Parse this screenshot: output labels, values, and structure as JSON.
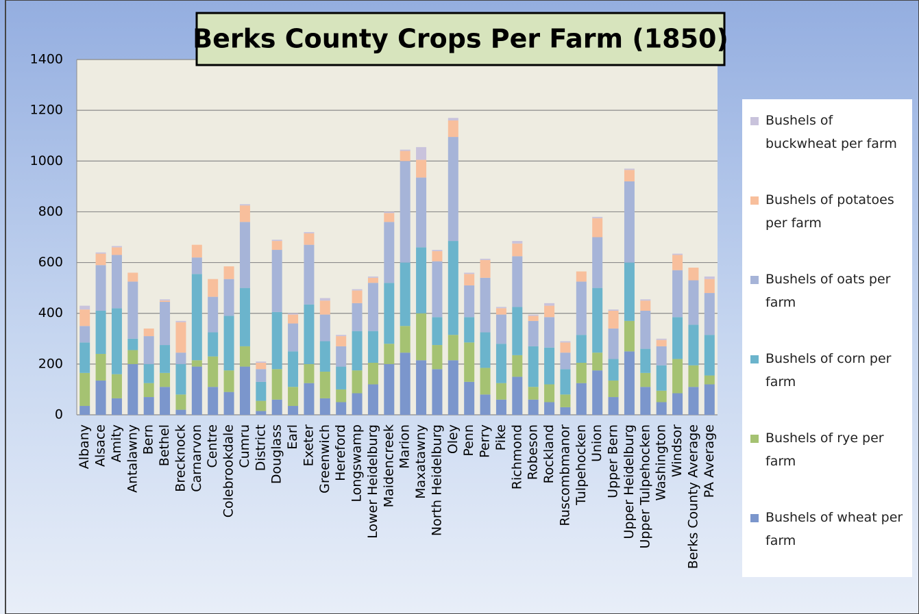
{
  "chart_data": {
    "type": "bar",
    "stacked": true,
    "grid": true,
    "legend": "right",
    "title": "Berks County Crops Per Farm (1850)",
    "categories": [
      "Albany",
      "Alsace",
      "Amity",
      "Antalawny",
      "Bern",
      "Bethel",
      "Brecknock",
      "Carnarvon",
      "Centre",
      "Colebrookdale",
      "Cumru",
      "District",
      "Douglass",
      "Earl",
      "Exeter",
      "Greenwich",
      "Hereford",
      "Longswamp",
      "Lower Heidelburg",
      "Maidencreek",
      "Marion",
      "Maxatawny",
      "North Heidelburg",
      "Oley",
      "Penn",
      "Perry",
      "Pike",
      "Richmond",
      "Robeson",
      "Rockland",
      "Ruscombmanor",
      "Tulpehocken",
      "Union",
      "Upper Bern",
      "Upper Heidelburg",
      "Upper Tulpehocken",
      "Washington",
      "Windsor",
      "Berks County Average",
      "PA Average"
    ],
    "series": [
      {
        "name": "Bushels of wheat per farm",
        "color": "#7b96cc",
        "values": [
          35,
          135,
          65,
          200,
          70,
          110,
          20,
          190,
          110,
          90,
          190,
          15,
          60,
          35,
          125,
          65,
          50,
          85,
          120,
          200,
          245,
          215,
          180,
          215,
          130,
          80,
          60,
          150,
          60,
          50,
          30,
          125,
          175,
          70,
          250,
          110,
          50,
          85,
          110,
          120
        ]
      },
      {
        "name": "Bushels of rye per farm",
        "color": "#a5c272",
        "values": [
          130,
          105,
          95,
          55,
          55,
          55,
          60,
          25,
          120,
          85,
          80,
          40,
          120,
          75,
          75,
          105,
          50,
          90,
          85,
          80,
          105,
          185,
          95,
          100,
          155,
          105,
          65,
          85,
          50,
          70,
          50,
          80,
          70,
          65,
          120,
          55,
          45,
          135,
          85,
          35
        ]
      },
      {
        "name": "Bushels of corn per farm",
        "color": "#6bb4cc",
        "values": [
          120,
          170,
          260,
          45,
          75,
          110,
          120,
          340,
          95,
          215,
          230,
          75,
          225,
          140,
          235,
          120,
          90,
          155,
          125,
          240,
          250,
          260,
          110,
          370,
          100,
          140,
          155,
          190,
          160,
          145,
          100,
          110,
          255,
          85,
          230,
          95,
          100,
          165,
          160,
          160
        ]
      },
      {
        "name": "Bushels of oats per farm",
        "color": "#a6b4d8",
        "values": [
          65,
          180,
          210,
          225,
          110,
          170,
          45,
          65,
          140,
          145,
          260,
          50,
          245,
          110,
          235,
          105,
          80,
          110,
          190,
          240,
          400,
          275,
          220,
          410,
          125,
          215,
          115,
          200,
          100,
          120,
          65,
          210,
          200,
          120,
          320,
          150,
          75,
          185,
          175,
          165
        ]
      },
      {
        "name": "Bushels of potatoes per farm",
        "color": "#f8bf9c",
        "values": [
          65,
          45,
          30,
          35,
          30,
          5,
          120,
          50,
          70,
          50,
          65,
          25,
          35,
          35,
          45,
          55,
          40,
          50,
          20,
          35,
          40,
          70,
          40,
          65,
          45,
          70,
          25,
          50,
          20,
          45,
          40,
          40,
          75,
          70,
          45,
          40,
          25,
          60,
          50,
          55
        ]
      },
      {
        "name": "Bushels of buckwheat per farm",
        "color": "#c9c3dc",
        "values": [
          15,
          5,
          5,
          0,
          0,
          5,
          5,
          0,
          0,
          0,
          5,
          5,
          5,
          5,
          5,
          10,
          5,
          5,
          5,
          5,
          5,
          50,
          5,
          10,
          5,
          5,
          5,
          10,
          5,
          10,
          5,
          0,
          5,
          5,
          5,
          5,
          5,
          5,
          0,
          10
        ]
      }
    ],
    "ylim": [
      0,
      1400
    ],
    "yticks": [
      0,
      200,
      400,
      600,
      800,
      1000,
      1200,
      1400
    ]
  }
}
